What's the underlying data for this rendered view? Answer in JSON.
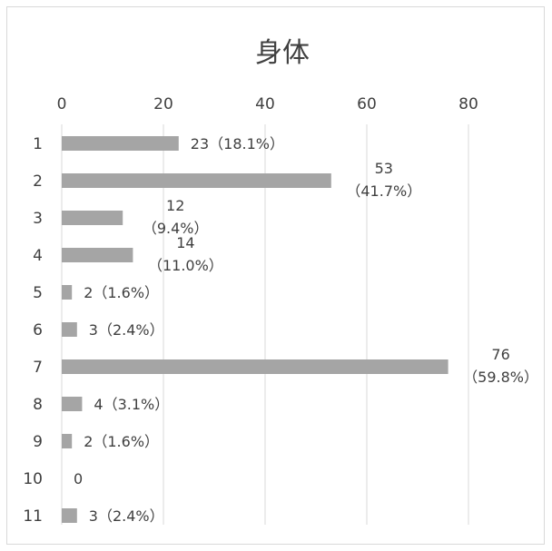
{
  "chart_data": {
    "type": "bar",
    "orientation": "horizontal",
    "title": "身体",
    "xlabel": "",
    "ylabel": "",
    "xlim": [
      0,
      90
    ],
    "x_ticks": [
      0,
      20,
      40,
      60,
      80
    ],
    "grid": true,
    "legend": "none",
    "bar_color": "#a5a5a5",
    "categories": [
      "1",
      "2",
      "3",
      "4",
      "5",
      "6",
      "7",
      "8",
      "9",
      "10",
      "11"
    ],
    "values": [
      23,
      53,
      12,
      14,
      2,
      3,
      76,
      4,
      2,
      0,
      3
    ],
    "labels": [
      [
        "23（18.1%）"
      ],
      [
        "53",
        "（41.7%）"
      ],
      [
        "12",
        "（9.4%）"
      ],
      [
        "14",
        "（11.0%）"
      ],
      [
        "2（1.6%）"
      ],
      [
        "3（2.4%）"
      ],
      [
        "76",
        "（59.8%）"
      ],
      [
        "4（3.1%）"
      ],
      [
        "2（1.6%）"
      ],
      [
        "0"
      ],
      [
        "3（2.4%）"
      ]
    ]
  }
}
